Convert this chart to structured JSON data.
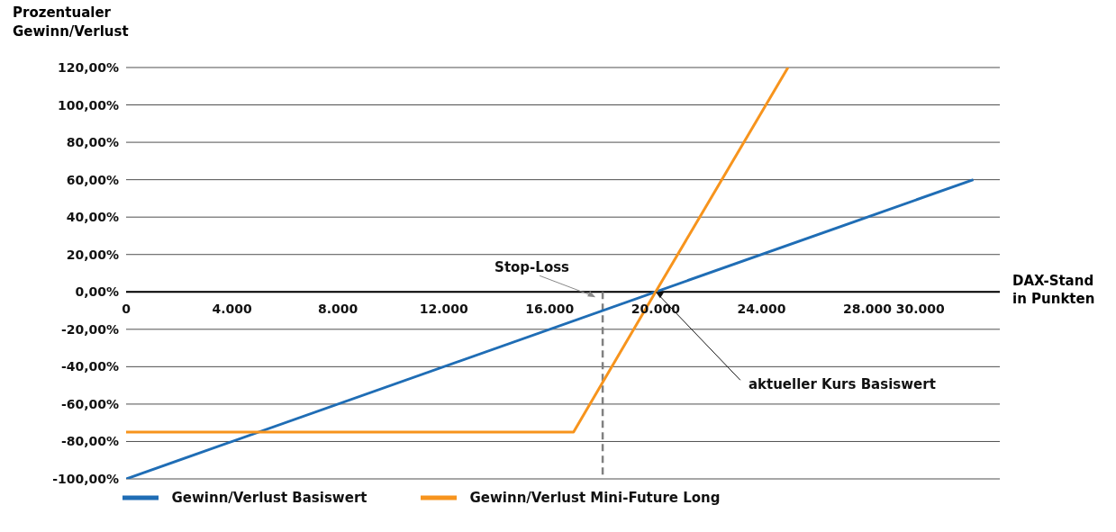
{
  "chart_data": {
    "type": "line",
    "ylabel": "Prozentualer Gewinn/Verlust",
    "xlabel": "DAX-Stand in Punkten",
    "xlim": [
      0,
      33000
    ],
    "xticks": [
      {
        "value": 0,
        "label": "0"
      },
      {
        "value": 4000,
        "label": "4.000"
      },
      {
        "value": 8000,
        "label": "8.000"
      },
      {
        "value": 12000,
        "label": "12.000"
      },
      {
        "value": 16000,
        "label": "16.000"
      },
      {
        "value": 20000,
        "label": "20.000"
      },
      {
        "value": 24000,
        "label": "24.000"
      },
      {
        "value": 28000,
        "label": "28.000"
      },
      {
        "value": 30000,
        "label": "30.000"
      }
    ],
    "ylim": [
      -100,
      120
    ],
    "yticks": [
      {
        "value": 120,
        "label": "120,00%"
      },
      {
        "value": 100,
        "label": "100,00%"
      },
      {
        "value": 80,
        "label": "80,00%"
      },
      {
        "value": 60,
        "label": "60,00%"
      },
      {
        "value": 40,
        "label": "40,00%"
      },
      {
        "value": 20,
        "label": "20,00%"
      },
      {
        "value": 0,
        "label": "0,00%"
      },
      {
        "value": -20,
        "label": "-20,00%"
      },
      {
        "value": -40,
        "label": "-40,00%"
      },
      {
        "value": -60,
        "label": "-60,00%"
      },
      {
        "value": -80,
        "label": "-80,00%"
      },
      {
        "value": -100,
        "label": "-100,00%"
      }
    ],
    "series": [
      {
        "name": "Gewinn/Verlust Basiswert",
        "color": "#1f6db5",
        "x": [
          0,
          32000
        ],
        "values": [
          -100,
          60
        ]
      },
      {
        "name": "Gewinn/Verlust Mini-Future Long",
        "color": "#f7941d",
        "x": [
          0,
          16900,
          20000,
          25000
        ],
        "values": [
          -75,
          -75,
          0,
          120
        ]
      }
    ],
    "ref_lines": [
      {
        "axis": "x",
        "value": 18000,
        "label": "Stop-Loss",
        "color": "#808080",
        "line_style": "dashed"
      }
    ],
    "annotations": [
      {
        "text": "aktueller Kurs Basiswert",
        "x": 20000,
        "y": 0
      }
    ],
    "grid": "y",
    "legend": "bottom",
    "marker": "none",
    "line_style": "solid"
  }
}
